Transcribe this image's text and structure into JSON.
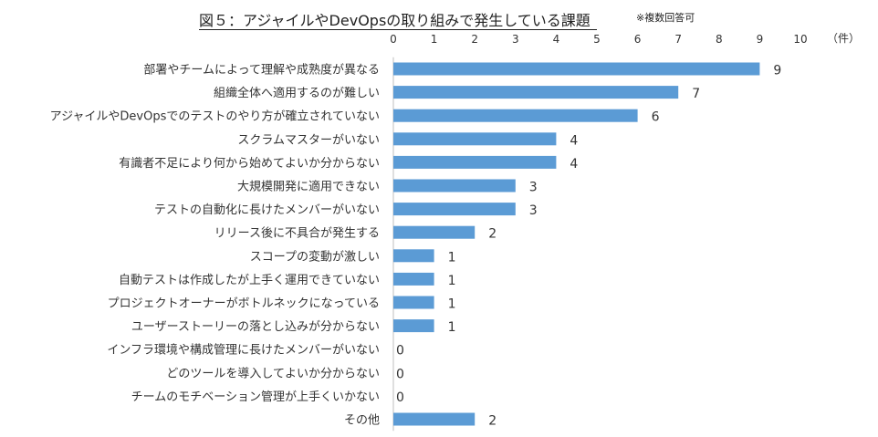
{
  "header": {
    "title": "図５：アジャイルやDevOpsの取り組みで発生している課題",
    "note": "※複数回答可"
  },
  "chart_data": {
    "type": "bar",
    "orientation": "horizontal",
    "title": "図５：アジャイルやDevOpsの取り組みで発生している課題",
    "unit_label": "（件）",
    "xlim": [
      0,
      10
    ],
    "ticks": [
      0,
      1,
      2,
      3,
      4,
      5,
      6,
      7,
      8,
      9,
      10
    ],
    "tick_position": "top",
    "grid": false,
    "legend": "none",
    "bar_color": "#5b9bd5",
    "categories": [
      "部署やチームによって理解や成熟度が異なる",
      "組織全体へ適用するのが難しい",
      "アジャイルやDevOpsでのテストのやり方が確立されていない",
      "スクラムマスターがいない",
      "有識者不足により何から始めてよいか分からない",
      "大規模開発に適用できない",
      "テストの自動化に長けたメンバーがいない",
      "リリース後に不具合が発生する",
      "スコープの変動が激しい",
      "自動テストは作成したが上手く運用できていない",
      "プロジェクトオーナーがボトルネックになっている",
      "ユーザーストーリーの落とし込みが分からない",
      "インフラ環境や構成管理に長けたメンバーがいない",
      "どのツールを導入してよいか分からない",
      "チームのモチベーション管理が上手くいかない",
      "その他"
    ],
    "values": [
      9,
      7,
      6,
      4,
      4,
      3,
      3,
      2,
      1,
      1,
      1,
      1,
      0,
      0,
      0,
      2
    ]
  }
}
